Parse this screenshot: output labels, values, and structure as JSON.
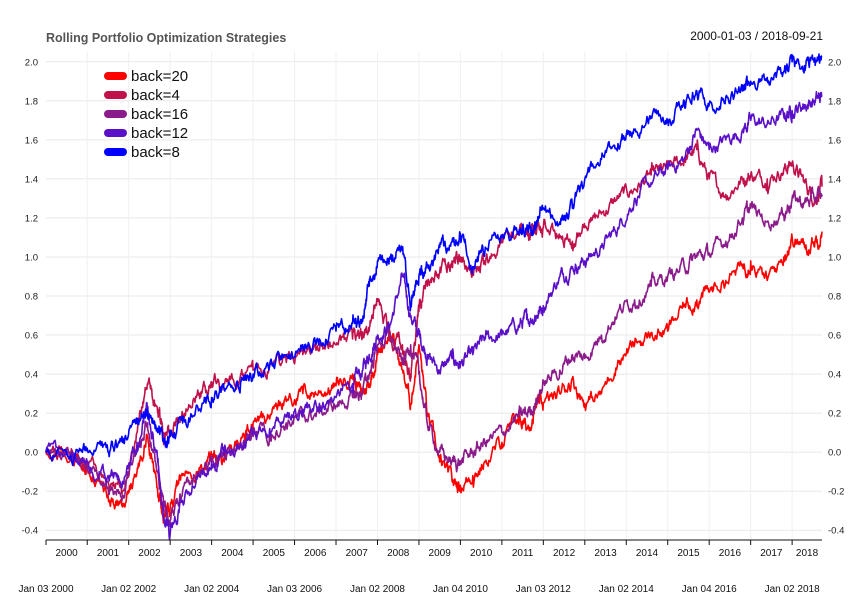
{
  "chart_data": {
    "type": "line",
    "title": "Rolling Portfolio Optimization Strategies",
    "date_range": "2000-01-03 / 2018-09-21",
    "x_range": [
      "2000-01-03",
      "2018-09-21"
    ],
    "ylim": [
      -0.45,
      2.05
    ],
    "y_ticks": [
      "-0.4",
      "-0.2",
      "0.0",
      "0.2",
      "0.4",
      "0.6",
      "0.8",
      "1.0",
      "1.2",
      "1.4",
      "1.6",
      "1.8",
      "2.0"
    ],
    "y_tick_values": [
      -0.4,
      -0.2,
      0.0,
      0.2,
      0.4,
      0.6,
      0.8,
      1.0,
      1.2,
      1.4,
      1.6,
      1.8,
      2.0
    ],
    "year_labels": [
      "2000",
      "2001",
      "2002",
      "2003",
      "2004",
      "2005",
      "2006",
      "2007",
      "2008",
      "2009",
      "2010",
      "2011",
      "2012",
      "2013",
      "2014",
      "2015",
      "2016",
      "2017",
      "2018"
    ],
    "date_labels": [
      "Jan 03 2000",
      "Jan 02 2002",
      "Jan 02 2004",
      "Jan 03 2006",
      "Jan 02 2008",
      "Jan 04 2010",
      "Jan 03 2012",
      "Jan 02 2014",
      "Jan 04 2016",
      "Jan 02 2018"
    ],
    "grid": true,
    "legend_position": "top-left",
    "series": [
      {
        "name": "back=20",
        "color": "#ff0000",
        "x": [
          2000.0,
          2000.6,
          2001.0,
          2001.5,
          2001.85,
          2002.2,
          2002.45,
          2002.7,
          2002.85,
          2003.0,
          2003.3,
          2003.7,
          2004.0,
          2004.3,
          2004.7,
          2005.0,
          2005.4,
          2005.8,
          2006.2,
          2006.6,
          2007.0,
          2007.4,
          2007.6,
          2007.8,
          2008.0,
          2008.3,
          2008.6,
          2008.8,
          2009.0,
          2009.2,
          2009.5,
          2009.8,
          2010.0,
          2010.3,
          2010.6,
          2011.0,
          2011.4,
          2011.6,
          2011.8,
          2012.0,
          2012.4,
          2012.7,
          2013.0,
          2013.4,
          2013.8,
          2014.2,
          2014.6,
          2015.0,
          2015.4,
          2015.7,
          2016.0,
          2016.4,
          2016.8,
          2017.0,
          2017.4,
          2017.8,
          2018.0,
          2018.3,
          2018.55,
          2018.72
        ],
        "y": [
          0.0,
          -0.03,
          -0.08,
          -0.22,
          -0.28,
          -0.1,
          0.08,
          -0.2,
          -0.32,
          -0.28,
          -0.12,
          -0.08,
          -0.02,
          -0.05,
          0.06,
          0.15,
          0.17,
          0.26,
          0.3,
          0.31,
          0.34,
          0.4,
          0.3,
          0.35,
          0.5,
          0.62,
          0.42,
          0.25,
          0.55,
          0.2,
          -0.05,
          -0.15,
          -0.17,
          -0.12,
          -0.05,
          0.05,
          0.18,
          0.12,
          0.22,
          0.25,
          0.3,
          0.38,
          0.25,
          0.3,
          0.47,
          0.55,
          0.6,
          0.62,
          0.75,
          0.78,
          0.82,
          0.88,
          0.95,
          0.98,
          0.88,
          1.0,
          1.1,
          1.05,
          1.08,
          1.13
        ]
      },
      {
        "name": "back=4",
        "color": "#c0114a",
        "x": [
          2000.0,
          2000.6,
          2001.0,
          2001.5,
          2001.85,
          2002.2,
          2002.45,
          2002.7,
          2002.85,
          2003.0,
          2003.3,
          2003.7,
          2004.0,
          2004.3,
          2004.7,
          2005.0,
          2005.4,
          2005.8,
          2006.2,
          2006.6,
          2007.0,
          2007.4,
          2007.6,
          2007.8,
          2008.0,
          2008.3,
          2008.6,
          2008.8,
          2009.0,
          2009.2,
          2009.5,
          2009.8,
          2010.0,
          2010.3,
          2010.6,
          2011.0,
          2011.4,
          2011.6,
          2011.8,
          2012.0,
          2012.4,
          2012.7,
          2013.0,
          2013.4,
          2013.8,
          2014.2,
          2014.6,
          2015.0,
          2015.4,
          2015.7,
          2016.0,
          2016.4,
          2016.8,
          2017.0,
          2017.4,
          2017.8,
          2018.0,
          2018.3,
          2018.55,
          2018.72
        ],
        "y": [
          0.0,
          -0.02,
          -0.05,
          -0.15,
          -0.2,
          0.1,
          0.35,
          0.2,
          0.1,
          0.08,
          0.2,
          0.3,
          0.36,
          0.35,
          0.4,
          0.42,
          0.44,
          0.46,
          0.5,
          0.52,
          0.55,
          0.58,
          0.6,
          0.62,
          0.78,
          0.6,
          0.55,
          0.4,
          0.72,
          0.85,
          0.92,
          0.98,
          1.0,
          0.92,
          0.96,
          1.1,
          1.12,
          1.15,
          1.12,
          1.15,
          1.1,
          1.08,
          1.15,
          1.22,
          1.3,
          1.35,
          1.42,
          1.45,
          1.5,
          1.55,
          1.4,
          1.32,
          1.4,
          1.42,
          1.4,
          1.45,
          1.48,
          1.38,
          1.3,
          1.36
        ]
      },
      {
        "name": "back=16",
        "color": "#8b1a8b",
        "x": [
          2000.0,
          2000.6,
          2001.0,
          2001.5,
          2001.85,
          2002.2,
          2002.45,
          2002.7,
          2002.85,
          2003.0,
          2003.3,
          2003.7,
          2004.0,
          2004.3,
          2004.7,
          2005.0,
          2005.4,
          2005.8,
          2006.2,
          2006.6,
          2007.0,
          2007.4,
          2007.6,
          2007.8,
          2008.0,
          2008.3,
          2008.6,
          2008.8,
          2009.0,
          2009.2,
          2009.5,
          2009.8,
          2010.0,
          2010.3,
          2010.6,
          2011.0,
          2011.4,
          2011.6,
          2011.8,
          2012.0,
          2012.4,
          2012.7,
          2013.0,
          2013.4,
          2013.8,
          2014.2,
          2014.6,
          2015.0,
          2015.4,
          2015.7,
          2016.0,
          2016.4,
          2016.8,
          2017.0,
          2017.4,
          2017.8,
          2018.0,
          2018.3,
          2018.55,
          2018.72
        ],
        "y": [
          0.0,
          -0.03,
          -0.06,
          -0.18,
          -0.22,
          0.0,
          0.15,
          -0.1,
          -0.3,
          -0.35,
          -0.2,
          -0.1,
          -0.05,
          -0.02,
          0.05,
          0.08,
          0.1,
          0.15,
          0.18,
          0.2,
          0.24,
          0.28,
          0.3,
          0.4,
          0.55,
          0.6,
          0.45,
          0.55,
          0.4,
          0.15,
          0.0,
          -0.05,
          -0.05,
          0.0,
          0.05,
          0.1,
          0.18,
          0.2,
          0.25,
          0.35,
          0.42,
          0.5,
          0.48,
          0.6,
          0.72,
          0.78,
          0.85,
          0.9,
          0.95,
          1.0,
          1.02,
          1.08,
          1.2,
          1.25,
          1.18,
          1.22,
          1.3,
          1.28,
          1.3,
          1.32
        ]
      },
      {
        "name": "back=12",
        "color": "#5a10c8",
        "x": [
          2000.0,
          2000.6,
          2001.0,
          2001.5,
          2001.85,
          2002.2,
          2002.45,
          2002.7,
          2002.85,
          2003.0,
          2003.3,
          2003.7,
          2004.0,
          2004.3,
          2004.7,
          2005.0,
          2005.4,
          2005.8,
          2006.2,
          2006.6,
          2007.0,
          2007.4,
          2007.6,
          2007.8,
          2008.0,
          2008.3,
          2008.6,
          2008.8,
          2009.0,
          2009.2,
          2009.5,
          2009.8,
          2010.0,
          2010.3,
          2010.6,
          2011.0,
          2011.4,
          2011.6,
          2011.8,
          2012.0,
          2012.4,
          2012.7,
          2013.0,
          2013.4,
          2013.8,
          2014.2,
          2014.6,
          2015.0,
          2015.4,
          2015.7,
          2016.0,
          2016.4,
          2016.8,
          2017.0,
          2017.4,
          2017.8,
          2018.0,
          2018.3,
          2018.55,
          2018.72
        ],
        "y": [
          0.0,
          -0.02,
          -0.05,
          -0.12,
          -0.15,
          0.05,
          0.22,
          -0.05,
          -0.35,
          -0.42,
          -0.25,
          -0.12,
          -0.05,
          -0.02,
          0.05,
          0.1,
          0.12,
          0.18,
          0.22,
          0.25,
          0.28,
          0.35,
          0.4,
          0.5,
          0.6,
          0.65,
          0.9,
          0.7,
          0.6,
          0.5,
          0.42,
          0.48,
          0.45,
          0.5,
          0.58,
          0.6,
          0.65,
          0.68,
          0.7,
          0.75,
          0.9,
          0.95,
          0.98,
          1.05,
          1.15,
          1.3,
          1.38,
          1.45,
          1.5,
          1.65,
          1.55,
          1.6,
          1.65,
          1.7,
          1.68,
          1.72,
          1.75,
          1.78,
          1.8,
          1.82
        ]
      },
      {
        "name": "back=8",
        "color": "#0000ff",
        "x": [
          2000.0,
          2000.6,
          2001.0,
          2001.5,
          2001.85,
          2002.2,
          2002.45,
          2002.7,
          2002.85,
          2003.0,
          2003.3,
          2003.7,
          2004.0,
          2004.3,
          2004.7,
          2005.0,
          2005.4,
          2005.8,
          2006.2,
          2006.6,
          2007.0,
          2007.4,
          2007.6,
          2007.8,
          2008.0,
          2008.3,
          2008.6,
          2008.8,
          2009.0,
          2009.2,
          2009.5,
          2009.8,
          2010.0,
          2010.3,
          2010.6,
          2011.0,
          2011.4,
          2011.6,
          2011.8,
          2012.0,
          2012.4,
          2012.7,
          2013.0,
          2013.4,
          2013.8,
          2014.2,
          2014.6,
          2015.0,
          2015.4,
          2015.7,
          2016.0,
          2016.4,
          2016.8,
          2017.0,
          2017.4,
          2017.8,
          2018.0,
          2018.3,
          2018.55,
          2018.72
        ],
        "y": [
          0.0,
          -0.02,
          0.02,
          0.0,
          0.05,
          0.15,
          0.22,
          0.1,
          0.05,
          0.08,
          0.15,
          0.22,
          0.28,
          0.32,
          0.36,
          0.4,
          0.45,
          0.5,
          0.55,
          0.58,
          0.62,
          0.66,
          0.68,
          0.85,
          0.98,
          1.0,
          1.05,
          0.75,
          0.9,
          0.95,
          1.05,
          1.08,
          1.12,
          0.95,
          1.05,
          1.1,
          1.12,
          1.15,
          1.18,
          1.25,
          1.18,
          1.25,
          1.4,
          1.5,
          1.58,
          1.65,
          1.72,
          1.7,
          1.8,
          1.85,
          1.78,
          1.82,
          1.85,
          1.9,
          1.92,
          1.95,
          2.0,
          1.98,
          2.02,
          2.03
        ]
      }
    ]
  }
}
